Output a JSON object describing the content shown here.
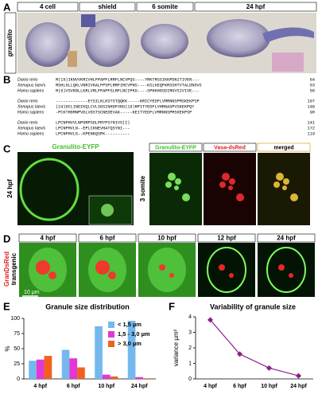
{
  "panel_labels": [
    "A",
    "B",
    "C",
    "D",
    "E",
    "F"
  ],
  "panel_a": {
    "row_label": "granulito",
    "columns": [
      "4 cell",
      "shield",
      "6 somite",
      "24 hpf"
    ]
  },
  "panel_b": {
    "blocks": [
      [
        {
          "species": "Danio rerio",
          "sequence": "M(15)IKNVVKRIVHLFPAPFLRRFLNCVPQS----YRKTRSSIKKPDNITIVEN---",
          "end": "64"
        },
        {
          "species": "Xenopus laevis",
          "sequence": "MSHLGLLQKLVNRIVKALFPSPLRRFIHCVPNS----KSLKEQFKRSSHTVTALDNGVS",
          "end": "53"
        },
        {
          "species": "Homo sapiens",
          "sequence": "M(6)VSVKNLLKRLVRLFPAPFSLRFLNCIPKG----SPHKHGSDIRGVSIVIVE---",
          "end": "50"
        }
      ],
      [
        {
          "species": "Danio rerio",
          "sequence": "-------------EYSILKLKSTSTQQKK-----KRICYEDFLVMRNNSPMSKEKPSP",
          "end": "107"
        },
        {
          "species": "Xenopus laevis",
          "sequence": "(24)DCLINDIKQLCVLSGSINHDFVKD(19)RPITYEDFLVHRNASPVSKEKPQY",
          "end": "148"
        },
        {
          "species": "Homo sapiens",
          "sequence": "-PCKTHGMNPVDLVDSTSCNEDEVAK-----KEITYEDFLVMRNNSPMSKEKPSP",
          "end": "90"
        }
      ],
      [
        {
          "species": "Danio rerio",
          "sequence": "LPCNPHVVLNPGRPSDLPRYPSYNIVS(I)",
          "end": "141"
        },
        {
          "species": "Xenopus laevis",
          "sequence": "LPCNPHVLN--EPLCKNEVHATQSYNI---",
          "end": "172"
        },
        {
          "species": "Homo sapiens",
          "sequence": "LPCNPHVLG--KPENKQSPK----------",
          "end": "119"
        }
      ]
    ]
  },
  "panel_c": {
    "left_header": "Granulito-EYFP",
    "left_row_label": "24 hpf",
    "right_row_label": "3 somite",
    "right_headers": [
      "Granulito-EYFP",
      "Vasa-dsRed",
      "merged"
    ]
  },
  "panel_d": {
    "row_label_lines": [
      "GranDsRed",
      "transgenic"
    ],
    "columns": [
      "4 hpf",
      "6 hpf",
      "10 hpf",
      "12 hpf",
      "24 hpf"
    ],
    "scale_bar": "10 µm"
  },
  "chart_data": [
    {
      "type": "bar",
      "title": "Granule size distribution",
      "y_label": "%",
      "categories": [
        "4 hpf",
        "6 hpf",
        "10 hpf",
        "24 hpf"
      ],
      "series": [
        {
          "name": "< 1,5 µm",
          "color": "#74b8ee",
          "values": [
            30,
            48,
            87,
            96
          ]
        },
        {
          "name": "1,5 - 3,0 µm",
          "color": "#e535d4",
          "values": [
            32,
            34,
            7,
            3
          ]
        },
        {
          "name": "> 3,0 µm",
          "color": "#f2601e",
          "values": [
            38,
            19,
            4,
            1
          ]
        }
      ],
      "ylim": [
        0,
        100
      ],
      "yticks": [
        0,
        25,
        50,
        75,
        100
      ],
      "legend": "upper-right"
    },
    {
      "type": "line",
      "title": "Variability of granule size",
      "y_label": "variance µm²",
      "categories": [
        "4 hpf",
        "6 hpf",
        "10 hpf",
        "24 hpf"
      ],
      "values": [
        3.8,
        1.6,
        0.7,
        0.2
      ],
      "color": "#8b1f8b",
      "ylim": [
        0,
        4
      ],
      "yticks": [
        0,
        1,
        2,
        3,
        4
      ]
    }
  ]
}
